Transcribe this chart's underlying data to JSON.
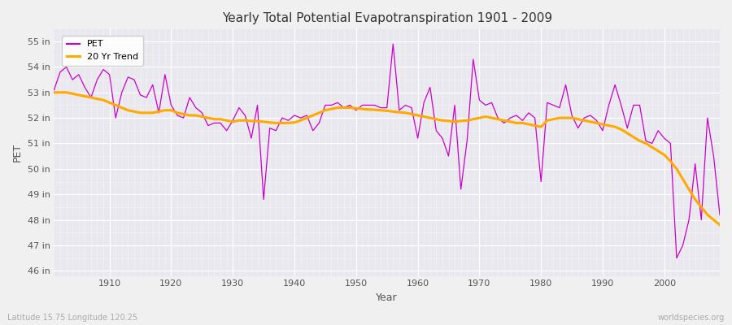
{
  "title": "Yearly Total Potential Evapotranspiration 1901 - 2009",
  "xlabel": "Year",
  "ylabel": "PET",
  "subtitle_left": "Latitude 15.75 Longitude 120.25",
  "subtitle_right": "worldspecies.org",
  "pet_color": "#cc00cc",
  "trend_color": "#ffaa00",
  "fig_bg": "#f0f0f0",
  "ax_bg": "#e8e8ee",
  "ylim": [
    45.8,
    55.5
  ],
  "yticks": [
    46,
    47,
    48,
    49,
    50,
    51,
    52,
    53,
    54,
    55
  ],
  "ytick_labels": [
    "46 in",
    "47 in",
    "48 in",
    "49 in",
    "50 in",
    "51 in",
    "52 in",
    "53 in",
    "54 in",
    "55 in"
  ],
  "xlim": [
    1901,
    2009
  ],
  "xticks": [
    1910,
    1920,
    1930,
    1940,
    1950,
    1960,
    1970,
    1980,
    1990,
    2000
  ],
  "start_year": 1901,
  "end_year": 2009,
  "pet_values": [
    53.1,
    53.8,
    54.0,
    53.5,
    53.7,
    53.2,
    52.8,
    53.5,
    53.9,
    53.7,
    52.0,
    53.0,
    53.6,
    53.5,
    52.9,
    52.8,
    53.3,
    52.2,
    53.7,
    52.5,
    52.1,
    52.0,
    52.8,
    52.4,
    52.2,
    51.7,
    51.8,
    51.8,
    51.5,
    51.9,
    52.4,
    52.1,
    51.2,
    52.5,
    48.8,
    51.6,
    51.5,
    52.0,
    51.9,
    52.1,
    52.0,
    52.1,
    51.5,
    51.8,
    52.5,
    52.5,
    52.6,
    52.4,
    52.5,
    52.3,
    52.5,
    52.5,
    52.5,
    52.4,
    52.4,
    54.9,
    52.3,
    52.5,
    52.4,
    51.2,
    52.6,
    53.2,
    51.5,
    51.2,
    50.5,
    52.5,
    49.2,
    51.1,
    54.3,
    52.7,
    52.5,
    52.6,
    52.0,
    51.8,
    52.0,
    52.1,
    51.9,
    52.2,
    52.0,
    49.5,
    52.6,
    52.5,
    52.4,
    53.3,
    52.1,
    51.6,
    52.0,
    52.1,
    51.9,
    51.5,
    52.5,
    53.3,
    52.5,
    51.6,
    52.5,
    52.5,
    51.1,
    51.0,
    51.5,
    51.2,
    51.0,
    46.5,
    47.0,
    48.0,
    50.2,
    48.0,
    52.0,
    50.5,
    48.2
  ],
  "trend_values": [
    53.0,
    53.0,
    53.0,
    52.95,
    52.9,
    52.85,
    52.8,
    52.75,
    52.7,
    52.6,
    52.5,
    52.4,
    52.3,
    52.25,
    52.2,
    52.2,
    52.2,
    52.25,
    52.3,
    52.3,
    52.2,
    52.15,
    52.1,
    52.1,
    52.05,
    52.0,
    51.95,
    51.95,
    51.9,
    51.85,
    51.9,
    51.9,
    51.88,
    51.87,
    51.85,
    51.82,
    51.8,
    51.8,
    51.8,
    51.82,
    51.9,
    52.0,
    52.1,
    52.2,
    52.3,
    52.35,
    52.4,
    52.4,
    52.4,
    52.38,
    52.35,
    52.33,
    52.32,
    52.3,
    52.28,
    52.25,
    52.22,
    52.2,
    52.15,
    52.1,
    52.05,
    52.0,
    51.95,
    51.9,
    51.88,
    51.85,
    51.88,
    51.9,
    51.95,
    52.0,
    52.05,
    52.0,
    51.95,
    51.9,
    51.85,
    51.8,
    51.8,
    51.75,
    51.7,
    51.65,
    51.9,
    51.95,
    52.0,
    52.0,
    52.0,
    51.95,
    51.9,
    51.85,
    51.8,
    51.75,
    51.7,
    51.65,
    51.55,
    51.4,
    51.25,
    51.1,
    51.0,
    50.85,
    50.7,
    50.55,
    50.3,
    50.0,
    49.6,
    49.2,
    48.8,
    48.5,
    48.2,
    48.0,
    47.8
  ]
}
